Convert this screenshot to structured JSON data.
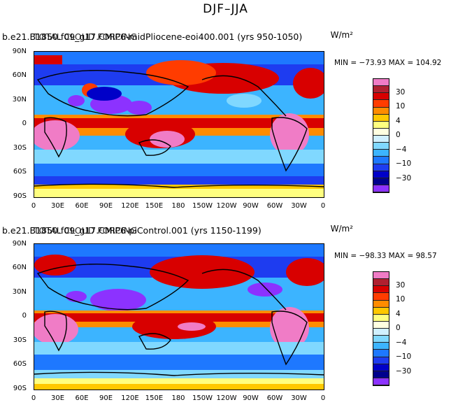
{
  "title": "DJF–JJA",
  "panels": [
    {
      "case": "b.e21.B1850.f09_g17.CMIP6-midPliocene-eoi400.001 (yrs 950-1050)",
      "overlay": "TOTAL CLOUD FORCING",
      "units": "W/m²",
      "minmax": "MIN = −73.93 MAX = 104.92"
    },
    {
      "case": "b.e21.B1850.f09_g17.CMIP6-piControl.001 (yrs 1150-1199)",
      "overlay": "TOTAL CLOUD FORCING",
      "units": "W/m²",
      "minmax": "MIN = −98.33 MAX =  98.57"
    }
  ],
  "lat_labels": [
    "90N",
    "60N",
    "30N",
    "0",
    "30S",
    "60S",
    "90S"
  ],
  "lon_labels": [
    "0",
    "30E",
    "60E",
    "90E",
    "120E",
    "150E",
    "180",
    "150W",
    "120W",
    "90W",
    "60W",
    "30W",
    "0"
  ],
  "colorbar": {
    "labels": [
      "30",
      "10",
      "4",
      "0",
      "−4",
      "−10",
      "−30"
    ],
    "colors": [
      "#f07cc6",
      "#b02030",
      "#d80000",
      "#ff3c00",
      "#ff8c00",
      "#ffc800",
      "#ffff80",
      "#ffffe0",
      "#d0f0ff",
      "#80d8ff",
      "#3cb4ff",
      "#1e78ff",
      "#1e3cf0",
      "#0000c8",
      "#00008c",
      "#8c32ff"
    ]
  }
}
